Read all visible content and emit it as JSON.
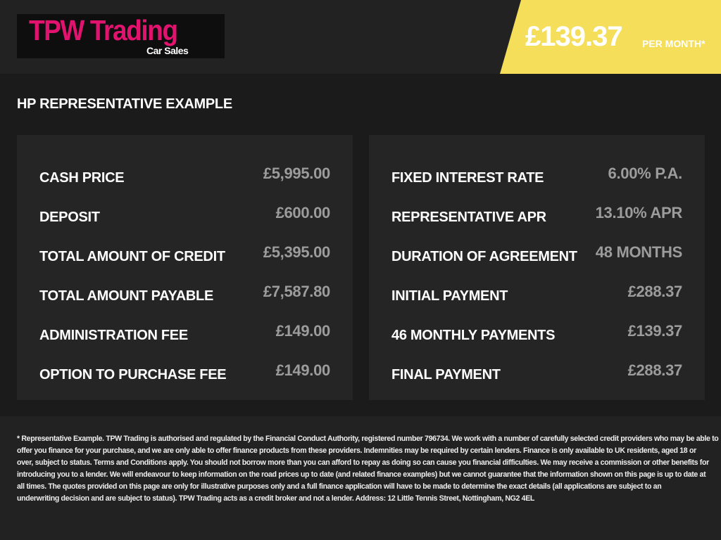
{
  "header": {
    "logo_text": "TPW Trading",
    "logo_subtext": "Car Sales",
    "price": "£139.37",
    "price_suffix": "PER MONTH*",
    "banner_color": "#f5de5a",
    "brand_color": "#e2126f"
  },
  "title": "HP REPRESENTATIVE EXAMPLE",
  "left_card": [
    {
      "label": "CASH PRICE",
      "value": "£5,995.00"
    },
    {
      "label": "DEPOSIT",
      "value": "£600.00"
    },
    {
      "label": "TOTAL AMOUNT OF CREDIT",
      "value": "£5,395.00"
    },
    {
      "label": "TOTAL AMOUNT PAYABLE",
      "value": "£7,587.80"
    },
    {
      "label": "ADMINISTRATION FEE",
      "value": "£149.00"
    },
    {
      "label": "OPTION TO PURCHASE FEE",
      "value": "£149.00"
    }
  ],
  "right_card": [
    {
      "label": "FIXED INTEREST RATE",
      "value": "6.00% P.A."
    },
    {
      "label": "REPRESENTATIVE APR",
      "value": "13.10% APR"
    },
    {
      "label": "DURATION OF AGREEMENT",
      "value": "48 MONTHS"
    },
    {
      "label": "INITIAL PAYMENT",
      "value": "£288.37"
    },
    {
      "label": "46 MONTHLY PAYMENTS",
      "value": "£139.37"
    },
    {
      "label": "FINAL PAYMENT",
      "value": "£288.37"
    }
  ],
  "footer_lines": [
    "* Representative Example. TPW Trading is authorised and regulated by the Financial Conduct Authority, registered number 796734. We work with a number of carefully selected credit providers who may be able to",
    "offer you finance for your purchase, and we are only able to offer finance products from these providers. Indemnities may be required by certain lenders. Finance is only available to UK residents, aged 18 or",
    "over, subject to status. Terms and Conditions apply. You should not borrow more than you can afford to repay as doing so can cause you financial difficulties. We may receive a commission or other benefits for",
    "introducing you to a lender. We will endeavour to keep information on the road prices up to date (and related finance examples) but we cannot guarantee that the information shown on this page is up to date at",
    "all times. The quotes provided on this page are only for illustrative purposes only and a full finance application will have to be made to determine the exact details (all applications are subject to an",
    "underwriting decision and are subject to status). TPW Trading acts as a credit broker and not a lender. Address: 12 Little Tennis Street, Nottingham, NG2 4EL"
  ]
}
